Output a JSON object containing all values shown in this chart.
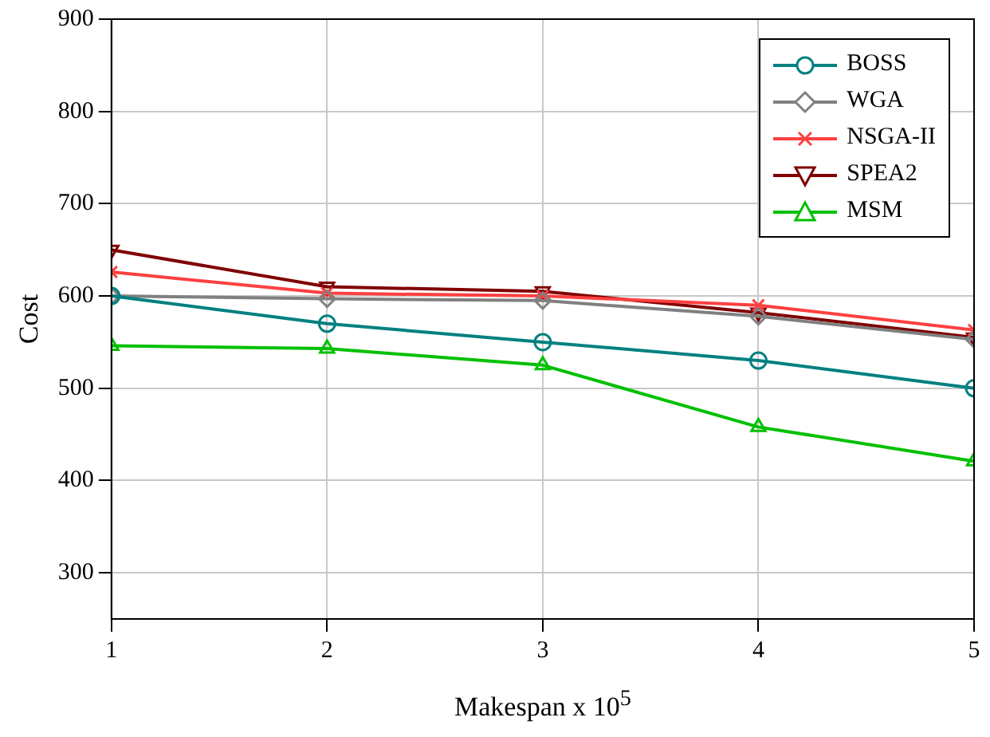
{
  "chart_data": {
    "type": "line",
    "xlabel": "Makespan x 10$^{5}$",
    "ylabel": "Cost",
    "x": [
      1,
      2,
      3,
      4,
      5
    ],
    "xlim": [
      1,
      5
    ],
    "xticks": [
      1,
      2,
      3,
      4,
      5
    ],
    "ylim": [
      250,
      900
    ],
    "yticks": [
      300,
      400,
      500,
      600,
      700,
      800,
      900
    ],
    "grid": true,
    "legend": "top right",
    "line_style": "solid",
    "series": [
      {
        "name": "BOSS",
        "color": "#008080",
        "marker": "circle",
        "values": [
          600,
          570,
          550,
          530,
          500
        ]
      },
      {
        "name": "WGA",
        "color": "#808080",
        "marker": "diamond",
        "values": [
          600,
          597,
          595,
          578,
          553
        ]
      },
      {
        "name": "NSGA-II",
        "color": "#ff4040",
        "marker": "cross",
        "values": [
          626,
          603,
          600,
          590,
          563
        ]
      },
      {
        "name": "SPEA2",
        "color": "#800000",
        "marker": "triangle-down",
        "values": [
          650,
          610,
          605,
          582,
          555
        ]
      },
      {
        "name": "MSM",
        "color": "#00c000",
        "marker": "triangle",
        "values": [
          546,
          543,
          525,
          458,
          421
        ]
      }
    ]
  }
}
